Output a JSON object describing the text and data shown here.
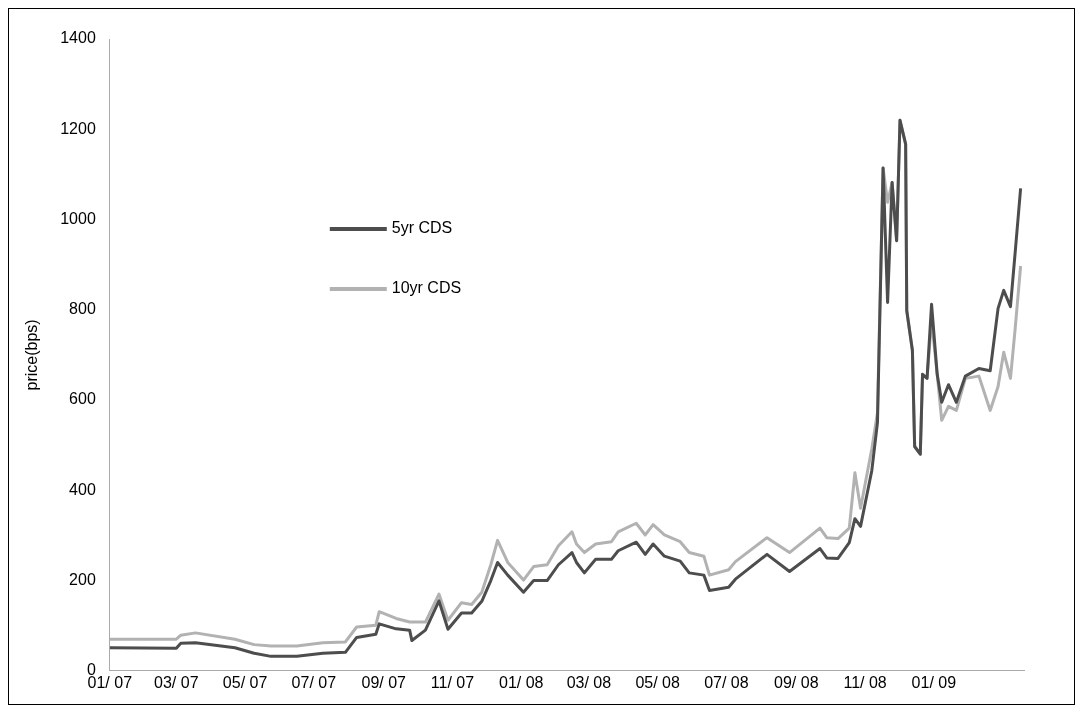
{
  "chart_data": {
    "type": "line",
    "ylabel": "price(bps)",
    "x": [
      "2007-01-01",
      "2007-03-01",
      "2007-03-05",
      "2007-03-18",
      "2007-04-22",
      "2007-05-09",
      "2007-05-24",
      "2007-06-16",
      "2007-07-09",
      "2007-07-29",
      "2007-08-08",
      "2007-08-25",
      "2007-08-28",
      "2007-09-12",
      "2007-09-24",
      "2007-09-26",
      "2007-10-08",
      "2007-10-20",
      "2007-10-28",
      "2007-11-09",
      "2007-11-18",
      "2007-11-27",
      "2007-12-05",
      "2007-12-11",
      "2007-12-20",
      "2008-01-03",
      "2008-01-12",
      "2008-01-24",
      "2008-02-03",
      "2008-02-15",
      "2008-02-19",
      "2008-02-26",
      "2008-03-07",
      "2008-03-21",
      "2008-03-27",
      "2008-04-12",
      "2008-04-20",
      "2008-04-27",
      "2008-05-07",
      "2008-05-21",
      "2008-05-29",
      "2008-06-11",
      "2008-06-16",
      "2008-07-03",
      "2008-07-09",
      "2008-08-06",
      "2008-08-26",
      "2008-09-22",
      "2008-09-28",
      "2008-10-08",
      "2008-10-18",
      "2008-10-23",
      "2008-10-28",
      "2008-11-07",
      "2008-11-12",
      "2008-11-17",
      "2008-11-21",
      "2008-11-25",
      "2008-11-29",
      "2008-12-02",
      "2008-12-07",
      "2008-12-08",
      "2008-12-13",
      "2008-12-15",
      "2008-12-20",
      "2008-12-22",
      "2008-12-26",
      "2008-12-30",
      "2009-01-04",
      "2009-01-08",
      "2009-01-14",
      "2009-01-21",
      "2009-01-29",
      "2009-02-10",
      "2009-02-20",
      "2009-02-27",
      "2009-03-04",
      "2009-03-10",
      "2009-03-14",
      "2009-03-19"
    ],
    "series": [
      {
        "name": "5yr CDS",
        "color": "#4d4d4d",
        "values": [
          51,
          50,
          61,
          62,
          51,
          39,
          32,
          32,
          39,
          41,
          74,
          81,
          104,
          93,
          90,
          67,
          90,
          155,
          92,
          128,
          128,
          154,
          200,
          240,
          212,
          174,
          200,
          200,
          235,
          262,
          240,
          217,
          247,
          247,
          266,
          285,
          258,
          281,
          254,
          243,
          217,
          212,
          178,
          185,
          203,
          258,
          220,
          271,
          250,
          249,
          284,
          337,
          320,
          444,
          550,
          1114,
          816,
          1082,
          953,
          1220,
          1167,
          798,
          710,
          497,
          480,
          657,
          648,
          812,
          657,
          595,
          634,
          595,
          653,
          670,
          665,
          803,
          843,
          807,
          922,
          1069
        ]
      },
      {
        "name": "10yr CDS",
        "color": "#b2b2b2",
        "values": [
          70,
          70,
          79,
          84,
          70,
          58,
          55,
          55,
          62,
          64,
          97,
          101,
          131,
          116,
          108,
          108,
          108,
          170,
          112,
          151,
          147,
          174,
          235,
          289,
          240,
          201,
          231,
          235,
          277,
          308,
          281,
          262,
          281,
          286,
          308,
          327,
          301,
          324,
          301,
          286,
          262,
          254,
          212,
          224,
          242,
          295,
          262,
          316,
          295,
          293,
          316,
          439,
          360,
          492,
          572,
          1114,
          1038,
          1082,
          953,
          1220,
          1167,
          798,
          710,
          497,
          480,
          657,
          648,
          777,
          657,
          555,
          586,
          577,
          648,
          653,
          577,
          630,
          706,
          648,
          754,
          897
        ]
      }
    ],
    "xlim": [
      "2007-01-01",
      "2009-03-22"
    ],
    "xticks": [
      {
        "value": "2007-01",
        "label": "01/ 07"
      },
      {
        "value": "2007-03",
        "label": "03/ 07"
      },
      {
        "value": "2007-05",
        "label": "05/ 07"
      },
      {
        "value": "2007-07",
        "label": "07/ 07"
      },
      {
        "value": "2007-09",
        "label": "09/ 07"
      },
      {
        "value": "2007-11",
        "label": "11/ 07"
      },
      {
        "value": "2008-01",
        "label": "01/ 08"
      },
      {
        "value": "2008-03",
        "label": "03/ 08"
      },
      {
        "value": "2008-05",
        "label": "05/ 08"
      },
      {
        "value": "2008-07",
        "label": "07/ 08"
      },
      {
        "value": "2008-09",
        "label": "09/ 08"
      },
      {
        "value": "2008-11",
        "label": "11/ 08"
      },
      {
        "value": "2009-01",
        "label": "01/ 09"
      }
    ],
    "ylim": [
      0,
      1400
    ],
    "yticks": [
      0,
      200,
      400,
      600,
      800,
      1000,
      1200,
      1400
    ],
    "legend": "top left",
    "marker": "none",
    "line_style": "solid"
  }
}
